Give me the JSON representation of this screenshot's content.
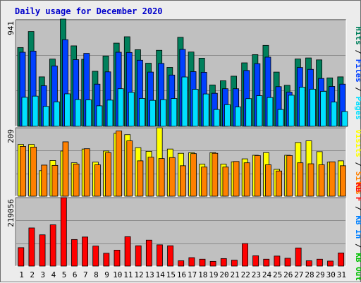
{
  "chart_data": {
    "type": "bar",
    "title": "Daily usage for December 2020",
    "categories": [
      "1",
      "2",
      "3",
      "4",
      "5",
      "6",
      "7",
      "8",
      "9",
      "10",
      "11",
      "12",
      "13",
      "14",
      "15",
      "16",
      "17",
      "18",
      "19",
      "20",
      "21",
      "22",
      "23",
      "24",
      "25",
      "26",
      "27",
      "28",
      "29",
      "30",
      "31"
    ],
    "weekend_days": [
      "5",
      "6",
      "12",
      "13",
      "19",
      "20",
      "26",
      "27"
    ],
    "colors": {
      "hits": "#00805c",
      "files": "#0040ff",
      "pages": "#00e0ff",
      "visits": "#ffff00",
      "sites": "#ff8000",
      "kb_in": "#0080ff",
      "kb_out": "#00c000",
      "kb_f": "#ff0000",
      "panel_bg": "#c0c0c0",
      "grid": "#8c8c8c",
      "weekend_label": "#00805c",
      "weekday_label": "#000000",
      "title_color": "#0000cc"
    },
    "panels": [
      {
        "id": "hits-files-pages",
        "ymax_label": "941",
        "ymax": 941,
        "legend": [
          {
            "text": "Hits",
            "color": "#00805c"
          },
          {
            "text": "Files",
            "color": "#0040ff"
          },
          {
            "text": "Pages",
            "color": "#00e0ff"
          }
        ],
        "series": [
          {
            "name": "Hits",
            "color": "#00805c",
            "values": [
              691,
              832,
              434,
              590,
              941,
              706,
              588,
              483,
              617,
              730,
              786,
              672,
              554,
              667,
              517,
              781,
              652,
              598,
              363,
              400,
              440,
              557,
              629,
              710,
              476,
              360,
              591,
              600,
              583,
              425,
              434
            ]
          },
          {
            "name": "Files",
            "color": "#0040ff",
            "values": [
              650,
              660,
              356,
              530,
              760,
              585,
              640,
              370,
              478,
              650,
              648,
              580,
              476,
              552,
              450,
              675,
              480,
              474,
              290,
              330,
              330,
              490,
              550,
              607,
              348,
              300,
              516,
              500,
              420,
              350,
              370
            ]
          },
          {
            "name": "Pages",
            "color": "#00e0ff",
            "values": [
              255,
              265,
              175,
              215,
              285,
              235,
              232,
              180,
              230,
              330,
              298,
              245,
              228,
              234,
              244,
              433,
              325,
              284,
              148,
              190,
              170,
              243,
              269,
              253,
              148,
              273,
              344,
              326,
              307,
              213,
              130
            ]
          }
        ]
      },
      {
        "id": "visits-sites",
        "ymax_label": "209",
        "ymax": 209,
        "legend": [
          {
            "text": "Visits",
            "color": "#ffff00"
          },
          {
            "text": "Sites",
            "color": "#ff8000"
          }
        ],
        "series": [
          {
            "name": "Visits",
            "color": "#ffff00",
            "values": [
              158,
              158,
              78,
              109,
              138,
              102,
              144,
              104,
              138,
              192,
              188,
              148,
              137,
              209,
              144,
              131,
              133,
              98,
              133,
              98,
              105,
              114,
              125,
              133,
              82,
              125,
              164,
              169,
              136,
              104,
              108
            ]
          },
          {
            "name": "Sites",
            "color": "#ff8000",
            "values": [
              152,
              150,
              95,
              94,
              166,
              98,
              145,
              96,
              133,
              199,
              169,
              108,
              119,
              115,
              118,
              93,
              130,
              89,
              131,
              89,
              106,
              102,
              124,
              96,
              77,
              124,
              102,
              99,
              96,
              105,
              93
            ]
          }
        ]
      },
      {
        "id": "kb-f-in-out",
        "ymax_label": "219056",
        "ymax": 219056,
        "legend": [
          {
            "text": "KB F",
            "color": "#ff0000"
          },
          {
            "text": "KB In",
            "color": "#0080ff"
          },
          {
            "text": "KB Out",
            "color": "#00c000"
          }
        ],
        "series": [
          {
            "name": "KB F",
            "color": "#ff0000",
            "values": [
              59000,
              122000,
              100000,
              132000,
              219056,
              85000,
              93000,
              64000,
              41000,
              51000,
              94000,
              65000,
              83000,
              68000,
              65000,
              17000,
              27000,
              22000,
              15000,
              24000,
              19000,
              72000,
              33000,
              22000,
              32000,
              25000,
              58000,
              17000,
              22000,
              16000,
              42000
            ]
          }
        ]
      }
    ]
  }
}
